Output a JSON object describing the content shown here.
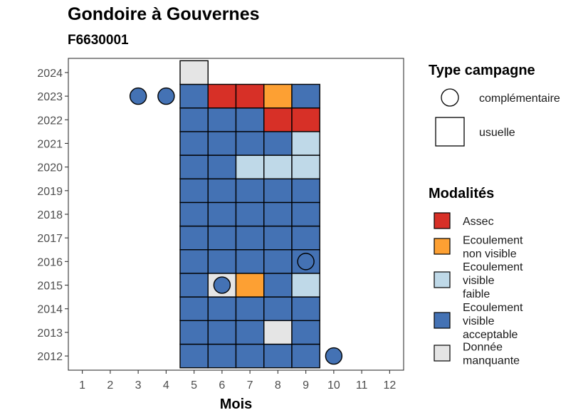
{
  "chart_data": {
    "type": "heatmap",
    "title": "Gondoire à Gouvernes",
    "subtitle": "F6630001",
    "xlabel": "Mois",
    "ylabel": "",
    "x_ticks": [
      "1",
      "2",
      "3",
      "4",
      "5",
      "6",
      "7",
      "8",
      "9",
      "10",
      "11",
      "12"
    ],
    "y_ticks": [
      "2012",
      "2013",
      "2014",
      "2015",
      "2016",
      "2017",
      "2018",
      "2019",
      "2020",
      "2021",
      "2022",
      "2023",
      "2024"
    ],
    "xlim": [
      0.5,
      12.5
    ],
    "ylim": [
      2011.4,
      2024.6
    ],
    "grid": false,
    "legend_placement": "right",
    "campaign_legend": {
      "title": "Type campagne",
      "items": [
        {
          "shape": "circle",
          "label": "complémentaire"
        },
        {
          "shape": "square",
          "label": "usuelle"
        }
      ]
    },
    "modalities_legend": {
      "title": "Modalités",
      "items": [
        {
          "key": "assec",
          "lines": [
            "Assec"
          ],
          "color": "#D73027"
        },
        {
          "key": "ecoul_nv",
          "lines": [
            "Ecoulement",
            "non visible"
          ],
          "color": "#FDA033"
        },
        {
          "key": "ecoul_vf",
          "lines": [
            "Ecoulement",
            "visible",
            "faible"
          ],
          "color": "#BFD9E8"
        },
        {
          "key": "ecoul_va",
          "lines": [
            "Ecoulement",
            "visible",
            "acceptable"
          ],
          "color": "#4472B4"
        },
        {
          "key": "missing",
          "lines": [
            "Donnée",
            "manquante"
          ],
          "color": "#E5E5E5"
        }
      ]
    },
    "usual_cells": [
      {
        "year": 2012,
        "months": [
          "ecoul_va",
          "ecoul_va",
          "ecoul_va",
          "ecoul_va",
          "ecoul_va"
        ]
      },
      {
        "year": 2013,
        "months": [
          "ecoul_va",
          "ecoul_va",
          "ecoul_va",
          "missing",
          "ecoul_va"
        ]
      },
      {
        "year": 2014,
        "months": [
          "ecoul_va",
          "ecoul_va",
          "ecoul_va",
          "ecoul_va",
          "ecoul_va"
        ]
      },
      {
        "year": 2015,
        "months": [
          "ecoul_va",
          "missing",
          "ecoul_nv",
          "ecoul_va",
          "ecoul_vf"
        ]
      },
      {
        "year": 2016,
        "months": [
          "ecoul_va",
          "ecoul_va",
          "ecoul_va",
          "ecoul_va",
          "ecoul_va"
        ]
      },
      {
        "year": 2017,
        "months": [
          "ecoul_va",
          "ecoul_va",
          "ecoul_va",
          "ecoul_va",
          "ecoul_va"
        ]
      },
      {
        "year": 2018,
        "months": [
          "ecoul_va",
          "ecoul_va",
          "ecoul_va",
          "ecoul_va",
          "ecoul_va"
        ]
      },
      {
        "year": 2019,
        "months": [
          "ecoul_va",
          "ecoul_va",
          "ecoul_va",
          "ecoul_va",
          "ecoul_va"
        ]
      },
      {
        "year": 2020,
        "months": [
          "ecoul_va",
          "ecoul_va",
          "ecoul_vf",
          "ecoul_vf",
          "ecoul_vf"
        ]
      },
      {
        "year": 2021,
        "months": [
          "ecoul_va",
          "ecoul_va",
          "ecoul_va",
          "ecoul_va",
          "ecoul_vf"
        ]
      },
      {
        "year": 2022,
        "months": [
          "ecoul_va",
          "ecoul_va",
          "ecoul_va",
          "assec",
          "assec"
        ]
      },
      {
        "year": 2023,
        "months": [
          "ecoul_va",
          "assec",
          "assec",
          "ecoul_nv",
          "ecoul_va"
        ]
      },
      {
        "year": 2024,
        "months": [
          "missing"
        ]
      }
    ],
    "usual_month_start": 5,
    "complementary_points": [
      {
        "month": 3,
        "year": 2023,
        "modality": "ecoul_va"
      },
      {
        "month": 4,
        "year": 2023,
        "modality": "ecoul_va"
      },
      {
        "month": 6,
        "year": 2015,
        "modality": "ecoul_va"
      },
      {
        "month": 9,
        "year": 2016,
        "modality": "ecoul_va"
      },
      {
        "month": 10,
        "year": 2012,
        "modality": "ecoul_va"
      }
    ]
  }
}
